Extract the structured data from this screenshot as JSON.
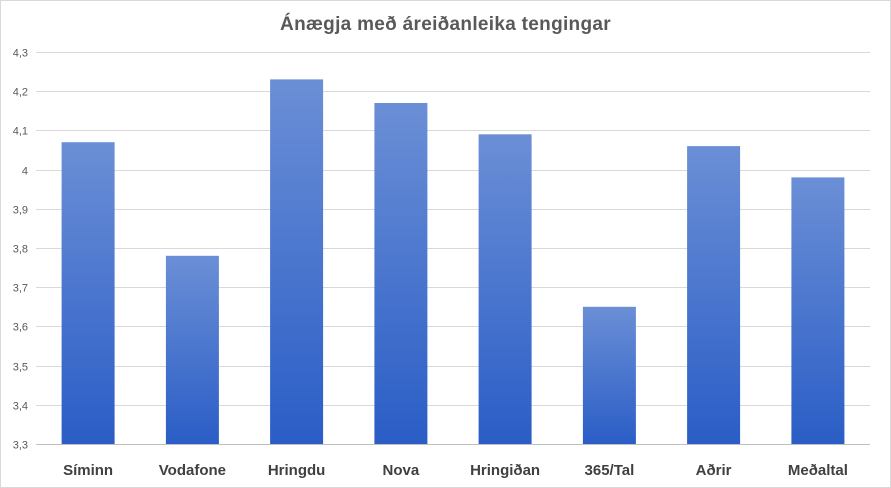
{
  "chart_data": {
    "type": "bar",
    "title": "Ánægja með áreiðanleika tengingar",
    "categories": [
      "Síminn",
      "Vodafone",
      "Hringdu",
      "Nova",
      "Hringiðan",
      "365/Tal",
      "Aðrir",
      "Meðaltal"
    ],
    "values": [
      4.07,
      3.78,
      4.23,
      4.17,
      4.09,
      3.65,
      4.06,
      3.98
    ],
    "ylim": [
      3.3,
      4.3
    ],
    "yticks": [
      "3,3",
      "3,4",
      "3,5",
      "3,6",
      "3,7",
      "3,8",
      "3,9",
      "4",
      "4,1",
      "4,2",
      "4,3"
    ],
    "grid": true,
    "legend": "none",
    "colors": {
      "bar_top": "#6b8fd6",
      "bar_bottom": "#2a5dc6",
      "grid": "#d9d9d9",
      "axis": "#bfbfbf"
    }
  }
}
